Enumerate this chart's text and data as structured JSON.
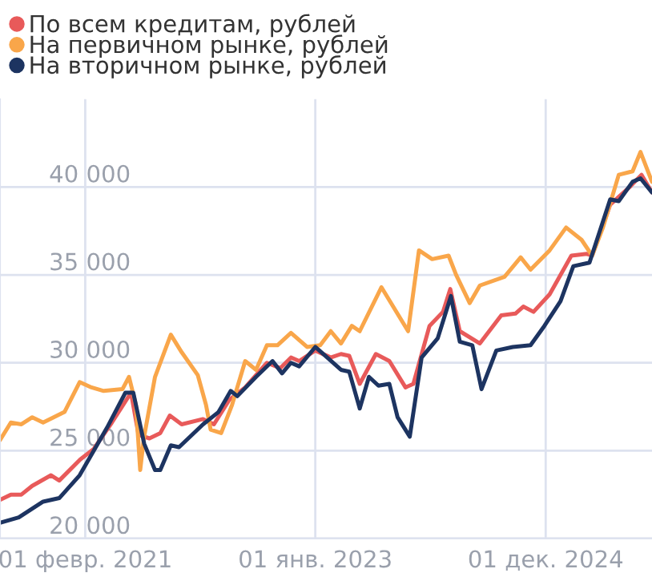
{
  "chart_data": {
    "type": "line",
    "xlim": [
      "2020-05-18",
      "2025-10-20"
    ],
    "xticks": [
      {
        "value": "2021-02-01",
        "label": "01 февр. 2021"
      },
      {
        "value": "2023-01-01",
        "label": "01 янв. 2023"
      },
      {
        "value": "2024-12-01",
        "label": "01 дек. 2024"
      }
    ],
    "ylim": [
      20000,
      45000
    ],
    "yticks": [
      {
        "value": 20000,
        "label": "20 000"
      },
      {
        "value": 25000,
        "label": "25 000"
      },
      {
        "value": 30000,
        "label": "30 000"
      },
      {
        "value": 35000,
        "label": "35 000"
      },
      {
        "value": 40000,
        "label": "40 000"
      }
    ],
    "grid": true,
    "legend": "top left",
    "marker": "none",
    "line_style": "solid",
    "series": [
      {
        "name": "По всем кредитам, рублей",
        "color": "#e85a5a",
        "x": [
          "2020-05-18",
          "2020-06-20",
          "2020-07-22",
          "2020-08-24",
          "2020-10-20",
          "2020-11-14",
          "2021-01-17",
          "2021-02-27",
          "2021-04-23",
          "2021-06-20",
          "2021-07-13",
          "2021-08-15",
          "2021-09-17",
          "2021-10-16",
          "2021-11-21",
          "2022-01-25",
          "2022-02-27",
          "2022-04-15",
          "2022-06-02",
          "2022-08-07",
          "2022-09-17",
          "2022-10-19",
          "2022-11-13",
          "2023-01-01",
          "2023-02-17",
          "2023-03-20",
          "2023-04-14",
          "2023-05-16",
          "2023-07-04",
          "2023-08-14",
          "2023-10-02",
          "2023-10-26",
          "2023-12-14",
          "2024-01-24",
          "2024-02-15",
          "2024-03-15",
          "2024-05-15",
          "2024-07-19",
          "2024-08-31",
          "2024-09-24",
          "2024-10-25",
          "2024-12-13",
          "2025-02-17",
          "2025-04-05",
          "2025-04-21",
          "2025-06-15",
          "2025-08-13",
          "2025-09-18",
          "2025-10-20"
        ],
        "values": [
          22200,
          22500,
          22500,
          23000,
          23600,
          23300,
          24500,
          25100,
          26600,
          28300,
          25900,
          25700,
          26000,
          27000,
          26500,
          26800,
          26500,
          27900,
          28600,
          30000,
          29700,
          30300,
          30100,
          30700,
          30300,
          30500,
          30400,
          28800,
          30500,
          30100,
          28600,
          28800,
          32100,
          32900,
          34200,
          31800,
          31100,
          32700,
          32800,
          33200,
          32900,
          33900,
          36100,
          36200,
          36100,
          39000,
          40000,
          40700,
          39700
        ]
      },
      {
        "name": "На первичном рынке, рублей",
        "color": "#f9a64a",
        "x": [
          "2020-05-18",
          "2020-06-20",
          "2020-07-22",
          "2020-08-24",
          "2020-09-26",
          "2020-11-30",
          "2021-01-15",
          "2021-02-20",
          "2021-03-29",
          "2021-05-25",
          "2021-06-14",
          "2021-07-05",
          "2021-07-18",
          "2021-07-29",
          "2021-09-01",
          "2021-10-19",
          "2021-11-21",
          "2022-01-09",
          "2022-02-03",
          "2022-02-17",
          "2022-03-21",
          "2022-04-23",
          "2022-06-02",
          "2022-07-05",
          "2022-08-07",
          "2022-09-08",
          "2022-10-19",
          "2022-12-07",
          "2023-01-16",
          "2023-02-17",
          "2023-03-20",
          "2023-04-22",
          "2023-05-16",
          "2023-07-21",
          "2023-10-10",
          "2023-11-12",
          "2023-12-22",
          "2024-02-10",
          "2024-03-04",
          "2024-04-14",
          "2024-05-15",
          "2024-07-29",
          "2024-09-16",
          "2024-10-16",
          "2024-12-13",
          "2025-02-01",
          "2025-03-20",
          "2025-04-21",
          "2025-05-24",
          "2025-07-11",
          "2025-08-22",
          "2025-09-15",
          "2025-10-20"
        ],
        "values": [
          25600,
          26600,
          26500,
          26900,
          26600,
          27200,
          28900,
          28600,
          28400,
          28500,
          29200,
          27600,
          23900,
          25700,
          29200,
          31600,
          30600,
          29300,
          27600,
          26200,
          26000,
          27600,
          30100,
          29600,
          31000,
          31000,
          31700,
          30900,
          31000,
          31800,
          31100,
          32100,
          31800,
          34300,
          31800,
          36400,
          35900,
          36100,
          35000,
          33400,
          34400,
          34900,
          36000,
          35300,
          36400,
          37700,
          37000,
          36100,
          37700,
          40700,
          40900,
          42000,
          40300
        ]
      },
      {
        "name": "На вторичном рынке, рублей",
        "color": "#1d3461",
        "x": [
          "2020-05-18",
          "2020-07-14",
          "2020-09-26",
          "2020-11-14",
          "2021-01-15",
          "2021-04-08",
          "2021-06-03",
          "2021-06-27",
          "2021-07-30",
          "2021-09-01",
          "2021-09-17",
          "2021-10-19",
          "2021-11-13",
          "2022-01-25",
          "2022-03-13",
          "2022-04-19",
          "2022-05-09",
          "2022-07-05",
          "2022-08-24",
          "2022-09-22",
          "2022-10-19",
          "2022-11-13",
          "2023-01-01",
          "2023-03-20",
          "2023-04-14",
          "2023-05-16",
          "2023-06-13",
          "2023-07-12",
          "2023-08-14",
          "2023-09-08",
          "2023-10-15",
          "2023-11-20",
          "2024-01-08",
          "2024-02-17",
          "2024-03-15",
          "2024-04-22",
          "2024-05-20",
          "2024-07-04",
          "2024-08-23",
          "2024-10-16",
          "2024-11-27",
          "2025-01-15",
          "2025-02-23",
          "2025-04-13",
          "2025-06-15",
          "2025-07-11",
          "2025-08-22",
          "2025-09-15",
          "2025-10-20"
        ],
        "values": [
          20900,
          21200,
          22100,
          22300,
          23600,
          26300,
          28300,
          28300,
          25400,
          23900,
          23900,
          25300,
          25200,
          26500,
          27200,
          28400,
          28100,
          29200,
          30100,
          29400,
          30000,
          29800,
          30900,
          29600,
          29500,
          27400,
          29200,
          28700,
          28800,
          26900,
          25800,
          30300,
          31400,
          33800,
          31200,
          31000,
          28500,
          30700,
          30900,
          31000,
          32100,
          33500,
          35500,
          35700,
          39300,
          39200,
          40300,
          40500,
          39700
        ]
      }
    ]
  }
}
